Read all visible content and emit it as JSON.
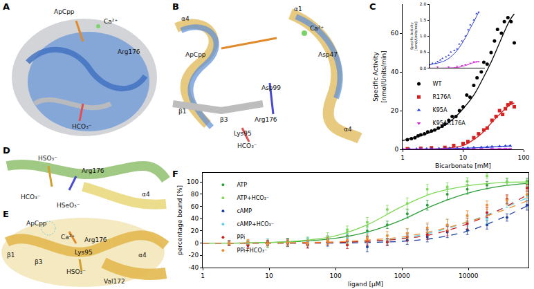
{
  "panels": [
    {
      "label": "A",
      "texts": [
        "ApCpp",
        "Ca²⁺",
        "Arg176",
        "HCO₃⁻"
      ]
    },
    {
      "label": "B",
      "texts": [
        "α4",
        "α1",
        "Ca²⁺",
        "ApCpp",
        "Asp47",
        "Asp99",
        "β1",
        "β3",
        "Arg176",
        "Lys95",
        "HCO₃⁻",
        "α4"
      ]
    },
    {
      "label": "D",
      "texts": [
        "HSO₃⁻",
        "Arg176",
        "HCO₃⁻",
        "HSeO₃⁻",
        "α4"
      ]
    },
    {
      "label": "E",
      "texts": [
        "ApCpp",
        "Ca²⁺",
        "β1",
        "β3",
        "Arg176",
        "Lys95",
        "HSO₃⁻",
        "α4",
        "Val172"
      ]
    }
  ],
  "chart_data": [
    {
      "panel": "C",
      "type": "scatter",
      "x_label": "Bicarbonate [mM]",
      "y_label": [
        "Specific Activity",
        "[nmol/Units/min]"
      ],
      "log": "x",
      "xlim": [
        1,
        100
      ],
      "xticks": [
        1,
        10,
        100
      ],
      "ylim": [
        0,
        75
      ],
      "yticks": [
        0,
        20,
        40,
        60
      ],
      "legend": "center left",
      "series": [
        {
          "name": "WT",
          "color": "#000000",
          "marker": "circle",
          "x": [
            1.2,
            1.4,
            1.6,
            1.8,
            2,
            2.3,
            2.6,
            3,
            3.4,
            3.9,
            4.5,
            5,
            5.8,
            6.6,
            7.6,
            8.7,
            10,
            11.5,
            13,
            15,
            17,
            20,
            22,
            25,
            29,
            33,
            37,
            43,
            48,
            55,
            62,
            70
          ],
          "values": [
            5,
            5.5,
            6,
            7,
            7.5,
            8,
            9,
            9.5,
            10,
            11,
            12,
            13,
            15,
            17,
            17,
            20,
            22,
            28,
            27,
            33,
            37,
            40,
            45,
            44,
            50,
            56,
            62,
            60,
            66,
            68,
            66,
            55
          ],
          "fit": {
            "x": [
              1,
              2,
              3,
              5,
              7,
              10,
              15,
              20,
              30,
              40,
              50,
              60,
              70
            ],
            "values": [
              4.5,
              7,
              9,
              12.5,
              16,
              21,
              28,
              35,
              46,
              55,
              62,
              67,
              70
            ]
          }
        },
        {
          "name": "R176A",
          "color": "#d62020",
          "marker": "square",
          "x": [
            1.2,
            2,
            3,
            5,
            7,
            10,
            12,
            15,
            18,
            22,
            25,
            30,
            35,
            40,
            45,
            50,
            55,
            62,
            70
          ],
          "values": [
            0.3,
            0.5,
            0.8,
            1,
            2,
            3,
            4,
            6,
            8,
            10,
            11,
            15,
            17,
            20,
            18,
            21,
            23,
            24,
            22
          ],
          "fit": {
            "x": [
              1,
              5,
              10,
              15,
              20,
              30,
              40,
              50,
              60,
              70
            ],
            "values": [
              0,
              0.5,
              2,
              5,
              8,
              14,
              18,
              21,
              23,
              24
            ]
          }
        },
        {
          "name": "K95A",
          "color": "#2a3fd6",
          "marker": "triangle-up",
          "x": [
            1,
            1.3,
            1.7,
            2,
            2.5,
            3,
            4,
            5,
            6,
            8,
            10,
            12,
            15,
            20,
            25,
            30,
            40,
            50,
            60
          ],
          "values": [
            0.1,
            0.15,
            0.15,
            0.2,
            0.25,
            0.3,
            0.35,
            0.4,
            0.5,
            0.55,
            0.6,
            0.75,
            0.85,
            1.0,
            1.2,
            1.35,
            1.5,
            1.7,
            1.75
          ],
          "fit": {
            "x": [
              1,
              3,
              5,
              10,
              20,
              30,
              40,
              60
            ],
            "values": [
              0.1,
              0.2,
              0.3,
              0.55,
              0.95,
              1.25,
              1.45,
              1.75
            ]
          }
        },
        {
          "name": "K95AR176A",
          "color": "#d22ad6",
          "marker": "triangle-down",
          "x": [
            1,
            2,
            5,
            10,
            15,
            20,
            30,
            40,
            50,
            60
          ],
          "values": [
            0.02,
            0.03,
            0.03,
            0.05,
            0.08,
            0.1,
            0.15,
            0.2,
            0.2,
            0.2
          ],
          "fit": {
            "x": [
              1,
              10,
              20,
              40,
              60
            ],
            "values": [
              0,
              0.02,
              0.08,
              0.17,
              0.2
            ]
          }
        }
      ],
      "inset": {
        "series": [
          "K95A",
          "K95AR176A"
        ],
        "y_label": [
          "Specific Activity",
          "[nmol/Units/min]"
        ],
        "xlim": [
          1,
          100
        ],
        "ylim": [
          0,
          2
        ],
        "yticks": [
          {
            "value": 0,
            "label": "0.0"
          },
          {
            "value": 0.5,
            "label": "0.5"
          },
          {
            "value": 1,
            "label": "1.0"
          },
          {
            "value": 1.5,
            "label": "1.5"
          },
          {
            "value": 2,
            "label": "2.0"
          }
        ],
        "tick_labels": "y"
      }
    },
    {
      "panel": "F",
      "type": "scatter",
      "x_label": "ligand [µM]",
      "y_label": "percentage bound [%]",
      "log": "x",
      "xlim": [
        1,
        80000
      ],
      "xticks": [
        1,
        10,
        100,
        1000,
        10000
      ],
      "ylim": [
        -40,
        115
      ],
      "yticks": [
        -40,
        -20,
        0,
        20,
        40,
        60,
        80,
        100
      ],
      "legend": "upper left",
      "series": [
        {
          "name": "ATP",
          "color": "#2e9e3a",
          "marker": "circle",
          "line_style": "solid",
          "x": [
            2.5,
            4.8,
            9.5,
            19,
            38,
            76,
            150,
            300,
            600,
            1200,
            2400,
            4800,
            9600,
            19000,
            38000,
            76000
          ],
          "values": [
            0,
            1,
            -2,
            1,
            3,
            6,
            12,
            20,
            30,
            48,
            62,
            80,
            88,
            95,
            100,
            101
          ],
          "errors": [
            3,
            4,
            5,
            6,
            5,
            6,
            7,
            8,
            6,
            7,
            8,
            9,
            8,
            6,
            6,
            5
          ],
          "fit": {
            "x": [
              1,
              3,
              10,
              30,
              100,
              300,
              1000,
              3000,
              10000,
              30000,
              80000
            ],
            "values": [
              0,
              0,
              1,
              3,
              8,
              18,
              38,
              62,
              82,
              93,
              98
            ]
          }
        },
        {
          "name": "ATP+HCO₃⁻",
          "color": "#7ed957",
          "marker": "circle",
          "line_style": "solid",
          "x": [
            2.5,
            4.8,
            9.5,
            19,
            38,
            76,
            150,
            300,
            600,
            1200,
            2400,
            4800,
            9600,
            19000,
            38000,
            76000
          ],
          "values": [
            0,
            -1,
            2,
            3,
            4,
            10,
            22,
            34,
            55,
            65,
            88,
            92,
            101,
            110,
            100,
            98
          ],
          "errors": [
            4,
            3,
            5,
            5,
            6,
            7,
            6,
            8,
            7,
            9,
            8,
            7,
            6,
            4,
            6,
            5
          ],
          "fit": {
            "x": [
              1,
              3,
              10,
              30,
              100,
              300,
              1000,
              3000,
              10000,
              30000,
              80000
            ],
            "values": [
              0,
              0,
              1,
              4,
              12,
              30,
              60,
              82,
              94,
              99,
              100
            ]
          }
        },
        {
          "name": "cAMP",
          "color": "#1a3fa0",
          "marker": "circle",
          "line_style": "dashed",
          "x": [
            2.5,
            4.8,
            9.5,
            19,
            38,
            76,
            150,
            300,
            600,
            1200,
            2400,
            4800,
            9600,
            19000,
            38000,
            76000
          ],
          "values": [
            0,
            -2,
            0,
            1,
            -3,
            1,
            3,
            -6,
            2,
            5,
            10,
            18,
            22,
            30,
            42,
            62
          ],
          "errors": [
            4,
            5,
            4,
            6,
            5,
            6,
            7,
            8,
            6,
            7,
            8,
            9,
            8,
            7,
            6,
            8
          ],
          "fit": {
            "x": [
              1,
              3,
              10,
              30,
              100,
              300,
              1000,
              3000,
              10000,
              30000,
              80000
            ],
            "values": [
              0,
              0,
              0,
              0,
              0,
              1,
              3,
              8,
              20,
              40,
              62
            ]
          }
        },
        {
          "name": "cAMP+HCO₃⁻",
          "color": "#5fd3e6",
          "marker": "circle",
          "line_style": "dashed",
          "x": [
            2.5,
            4.8,
            9.5,
            19,
            38,
            76,
            150,
            300,
            600,
            1200,
            2400,
            4800,
            9600,
            19000,
            38000,
            76000
          ],
          "values": [
            1,
            0,
            2,
            -1,
            3,
            5,
            8,
            10,
            6,
            15,
            22,
            30,
            35,
            40,
            65,
            78
          ],
          "errors": [
            3,
            4,
            5,
            5,
            6,
            6,
            7,
            7,
            8,
            8,
            9,
            9,
            8,
            8,
            7,
            6
          ],
          "fit": {
            "x": [
              1,
              3,
              10,
              30,
              100,
              300,
              1000,
              3000,
              10000,
              30000,
              80000
            ],
            "values": [
              0,
              0,
              0,
              0,
              1,
              3,
              8,
              18,
              35,
              55,
              75
            ]
          }
        },
        {
          "name": "PPi",
          "color": "#cc2222",
          "marker": "circle",
          "line_style": "dashed",
          "x": [
            2.5,
            4.8,
            9.5,
            19,
            38,
            76,
            150,
            300,
            600,
            1200,
            2400,
            4800,
            9600,
            19000,
            38000,
            76000
          ],
          "values": [
            0,
            -4,
            1,
            0,
            -2,
            2,
            -3,
            4,
            2,
            10,
            14,
            20,
            32,
            50,
            72,
            90
          ],
          "errors": [
            4,
            5,
            4,
            5,
            6,
            5,
            6,
            7,
            6,
            7,
            8,
            8,
            9,
            8,
            7,
            6
          ],
          "fit": {
            "x": [
              1,
              3,
              10,
              30,
              100,
              300,
              1000,
              3000,
              10000,
              30000,
              80000
            ],
            "values": [
              0,
              0,
              0,
              0,
              1,
              3,
              7,
              15,
              32,
              55,
              80
            ]
          }
        },
        {
          "name": "PPi+HCO₃⁻",
          "color": "#f08c30",
          "marker": "circle",
          "line_style": "dashed",
          "x": [
            2.5,
            4.8,
            9.5,
            19,
            38,
            76,
            150,
            300,
            600,
            1200,
            2400,
            4800,
            9600,
            19000,
            38000,
            76000
          ],
          "values": [
            0,
            2,
            -1,
            1,
            0,
            4,
            5,
            8,
            12,
            16,
            25,
            30,
            45,
            62,
            70,
            80
          ],
          "errors": [
            3,
            4,
            4,
            5,
            5,
            6,
            6,
            7,
            7,
            8,
            8,
            9,
            8,
            7,
            7,
            6
          ],
          "fit": {
            "x": [
              1,
              3,
              10,
              30,
              100,
              300,
              1000,
              3000,
              10000,
              30000,
              80000
            ],
            "values": [
              0,
              0,
              0,
              1,
              2,
              5,
              10,
              20,
              35,
              52,
              70
            ]
          }
        }
      ]
    }
  ]
}
